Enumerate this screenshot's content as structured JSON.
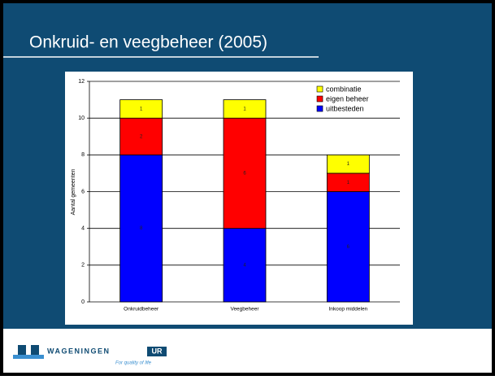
{
  "slide_title": "Onkruid- en veegbeheer (2005)",
  "logo": {
    "name": "WAGENINGEN",
    "badge": "UR",
    "tagline": "For quality of life"
  },
  "chart_data": {
    "type": "stacked_bar",
    "ylabel": "Aantal gemeenten",
    "categories": [
      "Onkruidbeheer",
      "Veegbeheer",
      "Inkoop middelen"
    ],
    "series": [
      {
        "name": "uitbesteden",
        "color": "#0000ff",
        "values": [
          8,
          4,
          6
        ]
      },
      {
        "name": "eigen beheer",
        "color": "#ff0000",
        "values": [
          2,
          6,
          1
        ]
      },
      {
        "name": "combinatie",
        "color": "#ffff00",
        "values": [
          1,
          1,
          1
        ]
      }
    ],
    "ylim": [
      0,
      12
    ],
    "yticks": [
      0,
      2,
      4,
      6,
      8,
      10,
      12
    ],
    "grid": true,
    "legend": "top-right"
  }
}
